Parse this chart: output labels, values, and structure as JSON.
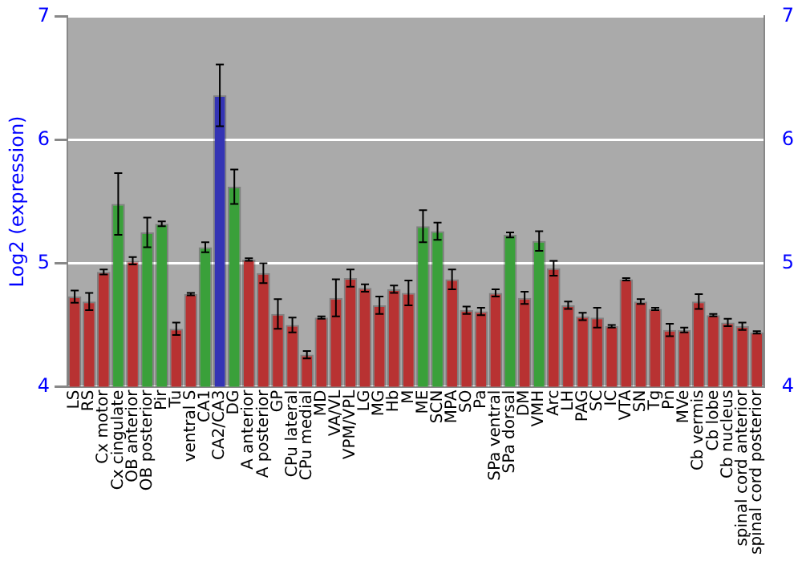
{
  "chart_data": {
    "type": "bar",
    "ylabel": "Log2 (expression)",
    "categories": [
      "LS",
      "RS",
      "Cx motor",
      "Cx cingulate",
      "OB anterior",
      "OB posterior",
      "Pir",
      "Tu",
      "ventral S",
      "CA1",
      "CA2/CA3",
      "DG",
      "A anterior",
      "A posterior",
      "GP",
      "CPu lateral",
      "CPu medial",
      "MD",
      "VA/VL",
      "VPM/VPL",
      "LG",
      "MG",
      "Hb",
      "M",
      "ME",
      "SCN",
      "MPA",
      "SO",
      "Pa",
      "SPa ventral",
      "SPa dorsal",
      "DM",
      "VMH",
      "Arc",
      "LH",
      "PAG",
      "SC",
      "IC",
      "VTA",
      "SN",
      "Tg",
      "Pn",
      "MVe",
      "Cb vermis",
      "Cb lobe",
      "Cb nucleus",
      "spinal cord anterior",
      "spinal cord posterior"
    ],
    "values": [
      4.73,
      4.69,
      4.93,
      5.48,
      5.02,
      5.25,
      5.32,
      4.47,
      4.75,
      5.13,
      6.36,
      5.62,
      5.03,
      4.92,
      4.59,
      4.5,
      4.26,
      4.56,
      4.72,
      4.88,
      4.8,
      4.66,
      4.79,
      4.76,
      5.3,
      5.26,
      4.87,
      4.62,
      4.61,
      4.76,
      5.23,
      4.72,
      5.18,
      4.96,
      4.66,
      4.57,
      4.56,
      4.49,
      4.87,
      4.69,
      4.63,
      4.46,
      4.46,
      4.69,
      4.58,
      4.52,
      4.49,
      4.44
    ],
    "errors": [
      0.05,
      0.07,
      0.02,
      0.25,
      0.03,
      0.12,
      0.02,
      0.05,
      0.01,
      0.04,
      0.25,
      0.14,
      0.01,
      0.08,
      0.12,
      0.06,
      0.03,
      0.01,
      0.15,
      0.07,
      0.03,
      0.07,
      0.03,
      0.1,
      0.13,
      0.07,
      0.08,
      0.03,
      0.03,
      0.03,
      0.02,
      0.05,
      0.08,
      0.06,
      0.03,
      0.03,
      0.08,
      0.01,
      0.01,
      0.02,
      0.01,
      0.05,
      0.02,
      0.06,
      0.01,
      0.03,
      0.03,
      0.01
    ],
    "colors": [
      "#b83232",
      "#b83232",
      "#b83232",
      "#3aa03a",
      "#b83232",
      "#3aa03a",
      "#3aa03a",
      "#b83232",
      "#b83232",
      "#3aa03a",
      "#3434b4",
      "#3aa03a",
      "#b83232",
      "#b83232",
      "#b83232",
      "#b83232",
      "#b83232",
      "#b83232",
      "#b83232",
      "#b83232",
      "#b83232",
      "#b83232",
      "#b83232",
      "#b83232",
      "#3aa03a",
      "#3aa03a",
      "#b83232",
      "#b83232",
      "#b83232",
      "#b83232",
      "#3aa03a",
      "#b83232",
      "#3aa03a",
      "#b83232",
      "#b83232",
      "#b83232",
      "#b83232",
      "#b83232",
      "#b83232",
      "#b83232",
      "#b83232",
      "#b83232",
      "#b83232",
      "#b83232",
      "#b83232",
      "#b83232",
      "#b83232",
      "#b83232"
    ],
    "ylim": [
      4,
      7
    ],
    "yticks": [
      4,
      5,
      6,
      7
    ],
    "y2lim": [
      4,
      7
    ],
    "y2ticks": [
      4,
      5,
      6,
      7
    ],
    "grid": "y",
    "legend": false
  }
}
